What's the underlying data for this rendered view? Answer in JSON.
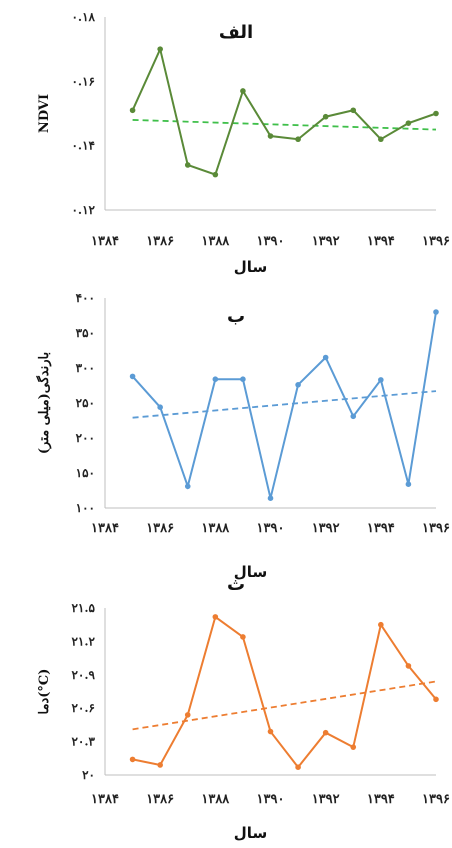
{
  "chart_data": [
    {
      "type": "line",
      "title": "الف",
      "xlabel": "سال",
      "ylabel": "NDVI",
      "x_ticks": [
        "۱۳۸۴",
        "۱۳۸۶",
        "۱۳۸۸",
        "۱۳۹۰",
        "۱۳۹۲",
        "۱۳۹۴",
        "۱۳۹۶"
      ],
      "y_ticks": [
        "۰.۱۲",
        "۰.۱۴",
        "۰.۱۶",
        "۰.۱۸"
      ],
      "ylim": [
        0.12,
        0.18
      ],
      "xlim": [
        1384,
        1396
      ],
      "grid": false,
      "colors": {
        "line": "#5a8a38",
        "trend": "#3fbf4a"
      },
      "series": [
        {
          "x": [
            1385,
            1386,
            1387,
            1388,
            1389,
            1390,
            1391,
            1392,
            1393,
            1394,
            1395,
            1396
          ],
          "values": [
            0.151,
            0.17,
            0.134,
            0.131,
            0.157,
            0.143,
            0.142,
            0.149,
            0.151,
            0.142,
            0.147,
            0.15
          ]
        }
      ],
      "trend": [
        0.148,
        0.145
      ]
    },
    {
      "type": "line",
      "title": "ب",
      "xlabel": "سال",
      "ylabel": "بارندگی(میلی متر)",
      "x_ticks": [
        "۱۳۸۴",
        "۱۳۸۶",
        "۱۳۸۸",
        "۱۳۹۰",
        "۱۳۹۲",
        "۱۳۹۴",
        "۱۳۹۶"
      ],
      "y_ticks": [
        "۱۰۰",
        "۱۵۰",
        "۲۰۰",
        "۲۵۰",
        "۳۰۰",
        "۳۵۰",
        "۴۰۰"
      ],
      "ylim": [
        100,
        400
      ],
      "xlim": [
        1384,
        1396
      ],
      "grid": false,
      "colors": {
        "line": "#5b9bd5",
        "trend": "#5b9bd5"
      },
      "series": [
        {
          "x": [
            1385,
            1386,
            1387,
            1388,
            1389,
            1390,
            1391,
            1392,
            1393,
            1394,
            1395,
            1396
          ],
          "values": [
            288,
            244,
            131,
            284,
            284,
            114,
            276,
            315,
            231,
            283,
            134,
            380
          ]
        }
      ],
      "trend": [
        229,
        267
      ]
    },
    {
      "type": "line",
      "title": "ث",
      "xlabel": "سال",
      "ylabel": "دما(°C)",
      "x_ticks": [
        "۱۳۸۴",
        "۱۳۸۶",
        "۱۳۸۸",
        "۱۳۹۰",
        "۱۳۹۲",
        "۱۳۹۴",
        "۱۳۹۶"
      ],
      "y_ticks": [
        "۲۰",
        "۲۰.۳",
        "۲۰.۶",
        "۲۰.۹",
        "۲۱.۲",
        "۲۱.۵"
      ],
      "ylim": [
        20.0,
        21.5
      ],
      "xlim": [
        1384,
        1396
      ],
      "grid": false,
      "colors": {
        "line": "#ed7d31",
        "trend": "#ed7d31"
      },
      "series": [
        {
          "x": [
            1385,
            1386,
            1387,
            1388,
            1389,
            1390,
            1391,
            1392,
            1393,
            1394,
            1395,
            1396
          ],
          "values": [
            20.14,
            20.09,
            20.54,
            21.42,
            21.24,
            20.39,
            20.07,
            20.38,
            20.25,
            21.35,
            20.98,
            20.68
          ]
        }
      ],
      "trend": [
        20.41,
        20.84
      ]
    }
  ]
}
